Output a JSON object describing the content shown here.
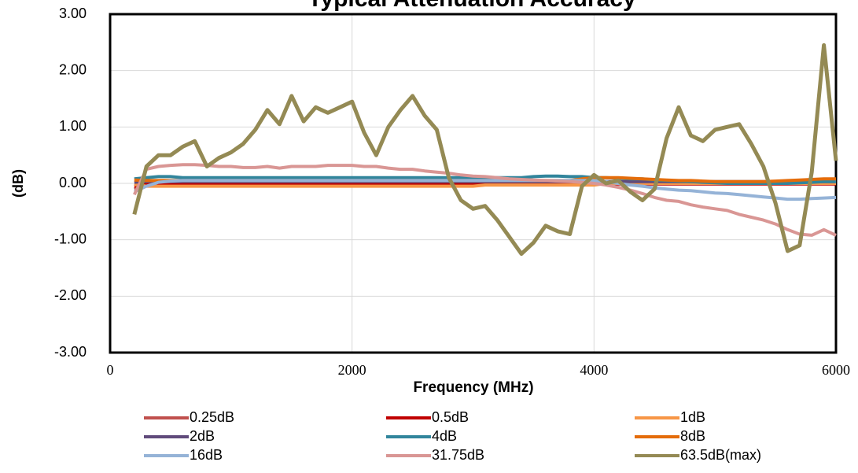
{
  "chart_data": {
    "type": "line",
    "title": "Typical Attenuation Accuracy",
    "x_label": "Frequency (MHz)",
    "y_label": "(dB)",
    "xlim": [
      0,
      6000
    ],
    "xticks": [
      0,
      2000,
      4000,
      6000
    ],
    "ylim": [
      -3,
      3
    ],
    "yticks": [
      {
        "value": -3,
        "label": "-3.00"
      },
      {
        "value": -2,
        "label": "-2.00"
      },
      {
        "value": -1,
        "label": "-1.00"
      },
      {
        "value": 0,
        "label": "0.00"
      },
      {
        "value": 1,
        "label": "1.00"
      },
      {
        "value": 2,
        "label": "2.00"
      },
      {
        "value": 3,
        "label": "3.00"
      }
    ],
    "grid": true,
    "legend": "bottom",
    "x": [
      200,
      300,
      400,
      500,
      600,
      700,
      800,
      900,
      1000,
      1100,
      1200,
      1300,
      1400,
      1500,
      1600,
      1700,
      1800,
      1900,
      2000,
      2100,
      2200,
      2300,
      2400,
      2500,
      2600,
      2700,
      2800,
      2900,
      3000,
      3100,
      3200,
      3300,
      3400,
      3500,
      3600,
      3700,
      3800,
      3900,
      4000,
      4100,
      4200,
      4300,
      4400,
      4500,
      4600,
      4700,
      4800,
      4900,
      5000,
      5100,
      5200,
      5300,
      5400,
      5500,
      5600,
      5700,
      5800,
      5900,
      6000
    ],
    "series": [
      {
        "name": "0.25dB",
        "color": "#c0504d",
        "values": [
          -0.1,
          -0.03,
          0,
          0,
          0,
          0,
          0,
          0,
          0,
          0,
          0,
          0,
          0,
          0,
          0,
          0,
          0,
          0,
          0,
          0,
          0,
          0,
          0,
          0,
          0,
          0,
          0,
          0,
          0,
          0,
          0,
          0,
          0,
          0,
          0,
          0,
          0,
          0,
          0,
          0,
          0,
          0,
          0,
          0,
          0,
          0,
          0,
          0,
          0,
          0,
          0,
          0,
          0,
          0,
          0,
          0,
          0,
          0,
          0
        ]
      },
      {
        "name": "0.5dB",
        "color": "#c00000",
        "values": [
          -0.05,
          -0.01,
          -0.01,
          -0.01,
          -0.01,
          -0.01,
          -0.01,
          -0.01,
          -0.01,
          -0.01,
          -0.01,
          -0.01,
          -0.01,
          -0.01,
          -0.01,
          -0.01,
          -0.01,
          -0.01,
          -0.01,
          -0.01,
          -0.01,
          -0.01,
          -0.01,
          -0.01,
          -0.01,
          -0.01,
          -0.01,
          -0.01,
          -0.01,
          -0.01,
          -0.01,
          -0.01,
          -0.01,
          -0.01,
          -0.01,
          -0.01,
          -0.01,
          -0.01,
          -0.01,
          -0.01,
          -0.01,
          -0.01,
          -0.01,
          -0.01,
          -0.01,
          -0.01,
          -0.01,
          -0.01,
          -0.01,
          -0.01,
          -0.01,
          -0.01,
          -0.01,
          -0.01,
          -0.01,
          -0.01,
          -0.01,
          -0.01,
          -0.01
        ]
      },
      {
        "name": "1dB",
        "color": "#f79646",
        "values": [
          -0.02,
          -0.05,
          -0.05,
          -0.05,
          -0.05,
          -0.05,
          -0.05,
          -0.05,
          -0.05,
          -0.05,
          -0.05,
          -0.05,
          -0.05,
          -0.05,
          -0.05,
          -0.05,
          -0.05,
          -0.05,
          -0.05,
          -0.05,
          -0.05,
          -0.05,
          -0.05,
          -0.05,
          -0.05,
          -0.05,
          -0.05,
          -0.05,
          -0.05,
          -0.03,
          -0.03,
          -0.03,
          -0.03,
          -0.03,
          -0.03,
          -0.03,
          -0.03,
          -0.03,
          -0.03,
          0,
          0,
          0,
          0,
          0,
          0,
          0,
          0,
          0,
          0,
          0,
          0,
          0,
          0,
          0,
          0,
          0,
          0,
          0,
          0
        ]
      },
      {
        "name": "2dB",
        "color": "#604a7b",
        "values": [
          0.02,
          0.03,
          0.03,
          0.03,
          0.03,
          0.03,
          0.03,
          0.03,
          0.03,
          0.03,
          0.03,
          0.03,
          0.03,
          0.03,
          0.03,
          0.03,
          0.03,
          0.03,
          0.03,
          0.03,
          0.03,
          0.03,
          0.03,
          0.03,
          0.03,
          0.03,
          0.03,
          0.03,
          0.03,
          0.03,
          0.03,
          0.03,
          0.03,
          0.03,
          0.03,
          0.03,
          0.03,
          0.03,
          0.03,
          0.03,
          0.03,
          0.03,
          0.03,
          0.03,
          0.03,
          0.03,
          0.03,
          0.03,
          0.03,
          0.03,
          0.03,
          0.03,
          0.03,
          0.03,
          0.03,
          0.03,
          0.03,
          0.03,
          0.03
        ]
      },
      {
        "name": "4dB",
        "color": "#31859c",
        "values": [
          0.08,
          0.1,
          0.12,
          0.12,
          0.1,
          0.1,
          0.1,
          0.1,
          0.1,
          0.1,
          0.1,
          0.1,
          0.1,
          0.1,
          0.1,
          0.1,
          0.1,
          0.1,
          0.1,
          0.1,
          0.1,
          0.1,
          0.1,
          0.1,
          0.1,
          0.1,
          0.1,
          0.1,
          0.1,
          0.1,
          0.1,
          0.1,
          0.1,
          0.12,
          0.13,
          0.13,
          0.12,
          0.12,
          0.1,
          0.1,
          0.09,
          0.08,
          0.08,
          0.06,
          0.05,
          0.04,
          0.03,
          0.02,
          0.01,
          0,
          0,
          0,
          0,
          0,
          0,
          0.01,
          0.02,
          0.03,
          0.03
        ]
      },
      {
        "name": "8dB",
        "color": "#e46c0a",
        "values": [
          0.06,
          0.05,
          0.05,
          0.05,
          0.05,
          0.05,
          0.05,
          0.05,
          0.05,
          0.05,
          0.05,
          0.05,
          0.05,
          0.05,
          0.05,
          0.05,
          0.05,
          0.05,
          0.05,
          0.05,
          0.05,
          0.05,
          0.05,
          0.05,
          0.05,
          0.05,
          0.05,
          0.05,
          0.05,
          0.05,
          0.05,
          0.05,
          0.05,
          0.05,
          0.05,
          0.05,
          0.05,
          0.08,
          0.1,
          0.1,
          0.1,
          0.09,
          0.08,
          0.07,
          0.06,
          0.05,
          0.05,
          0.04,
          0.03,
          0.03,
          0.03,
          0.03,
          0.03,
          0.04,
          0.05,
          0.06,
          0.07,
          0.08,
          0.08
        ]
      },
      {
        "name": "16dB",
        "color": "#95b3d7",
        "values": [
          -0.15,
          -0.05,
          0.02,
          0.04,
          0.05,
          0.05,
          0.05,
          0.05,
          0.05,
          0.05,
          0.05,
          0.05,
          0.05,
          0.05,
          0.05,
          0.05,
          0.05,
          0.05,
          0.05,
          0.05,
          0.05,
          0.05,
          0.05,
          0.05,
          0.05,
          0.05,
          0.05,
          0.05,
          0.05,
          0.05,
          0.05,
          0.05,
          0.05,
          0.05,
          0.05,
          0.05,
          0.05,
          0.05,
          0.05,
          0.03,
          0,
          -0.03,
          -0.05,
          -0.08,
          -0.1,
          -0.12,
          -0.13,
          -0.15,
          -0.17,
          -0.18,
          -0.2,
          -0.22,
          -0.24,
          -0.26,
          -0.28,
          -0.28,
          -0.27,
          -0.26,
          -0.25
        ]
      },
      {
        "name": "31.75dB",
        "color": "#d99694",
        "values": [
          -0.2,
          0.25,
          0.3,
          0.32,
          0.33,
          0.33,
          0.32,
          0.3,
          0.3,
          0.28,
          0.28,
          0.3,
          0.27,
          0.3,
          0.3,
          0.3,
          0.32,
          0.32,
          0.32,
          0.3,
          0.3,
          0.27,
          0.25,
          0.25,
          0.22,
          0.2,
          0.18,
          0.15,
          0.13,
          0.12,
          0.1,
          0.08,
          0.07,
          0.06,
          0.05,
          0.04,
          0.03,
          0.02,
          0,
          -0.03,
          -0.07,
          -0.12,
          -0.18,
          -0.25,
          -0.3,
          -0.32,
          -0.38,
          -0.42,
          -0.45,
          -0.48,
          -0.55,
          -0.6,
          -0.65,
          -0.72,
          -0.82,
          -0.9,
          -0.92,
          -0.82,
          -0.92
        ]
      },
      {
        "name": "63.5dB(max)",
        "color": "#948a54",
        "values": [
          -0.55,
          0.3,
          0.5,
          0.5,
          0.65,
          0.75,
          0.3,
          0.45,
          0.55,
          0.7,
          0.95,
          1.3,
          1.05,
          1.55,
          1.1,
          1.35,
          1.25,
          1.35,
          1.45,
          0.9,
          0.5,
          1.0,
          1.3,
          1.55,
          1.2,
          0.95,
          0.1,
          -0.3,
          -0.45,
          -0.4,
          -0.65,
          -0.95,
          -1.25,
          -1.05,
          -0.75,
          -0.85,
          -0.9,
          -0.05,
          0.15,
          0,
          0.05,
          -0.15,
          -0.3,
          -0.1,
          0.8,
          1.35,
          0.85,
          0.75,
          0.95,
          1.0,
          1.05,
          0.7,
          0.3,
          -0.35,
          -1.2,
          -1.1,
          0.2,
          2.45,
          0.4
        ]
      }
    ]
  }
}
